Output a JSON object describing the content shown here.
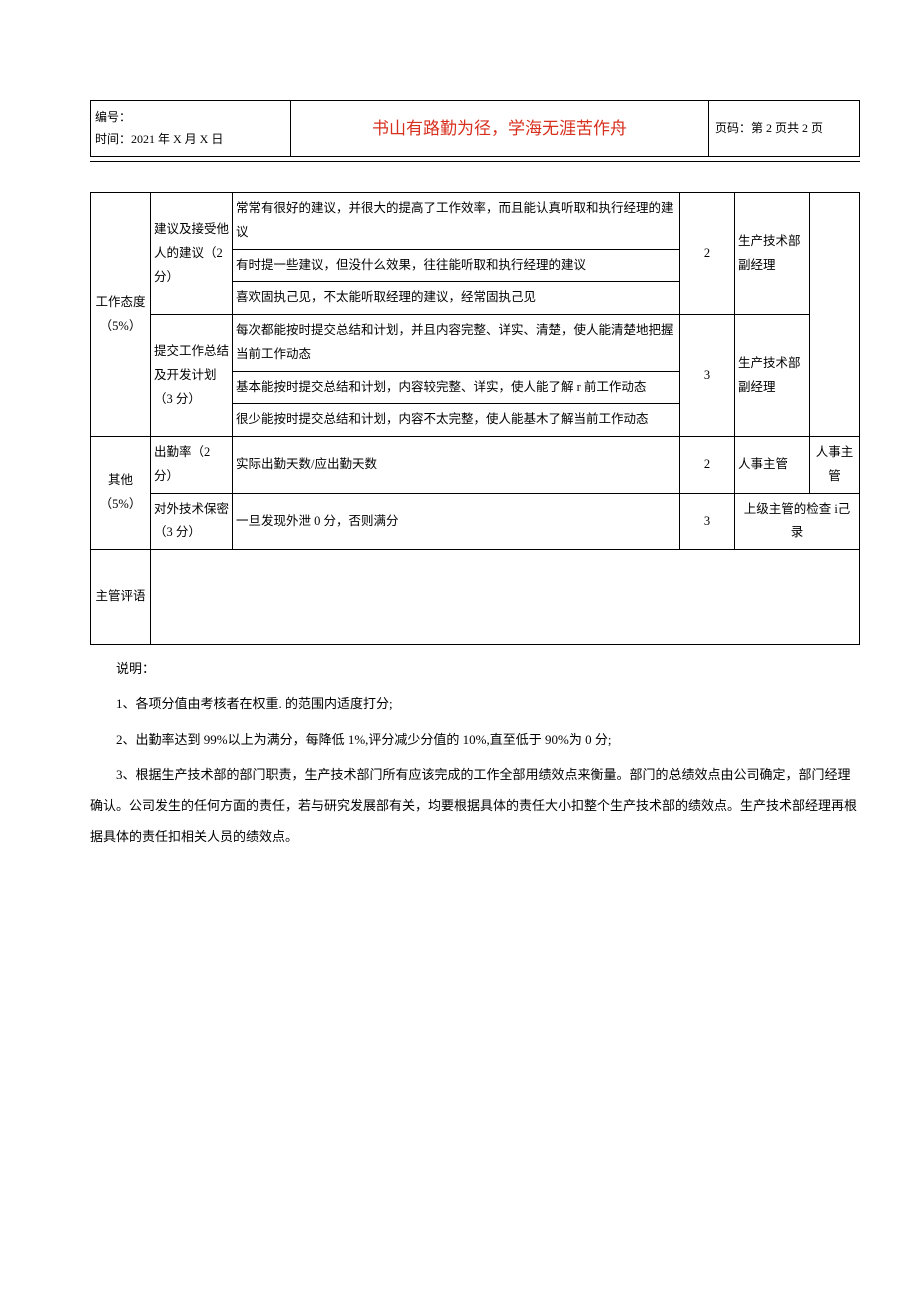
{
  "header": {
    "number_label": "编号：",
    "time_label": "时间：2021 年 X 月 X 日",
    "motto": "书山有路勤为径，学海无涯苦作舟",
    "page_label": "页码：第 2 页共 2 页"
  },
  "table": {
    "cat1": {
      "name": "工作态度（5%）",
      "sub1": {
        "name": "建议及接受他人的建议（2 分）",
        "desc1": "常常有很好的建议，并很大的提高了工作效率，而且能认真听取和执行经理的建议",
        "desc2": "有时提一些建议，但没什么效果，往往能听取和执行经理的建议",
        "desc3": "喜欢固执己见，不太能听取经理的建议，经常固执己见",
        "score": "2",
        "source": "生产技术部副经理"
      },
      "sub2": {
        "name": "提交工作总结及开发计划（3 分）",
        "desc1": "每次都能按时提交总结和计划，并且内容完整、详实、清楚，使人能清楚地把握当前工作动态",
        "desc2": "基本能按时提交总结和计划，内容较完整、详实，使人能了解 r 前工作动态",
        "desc3": "很少能按时提交总结和计划，内容不太完整，使人能基木了解当前工作动态",
        "score": "3",
        "source": "生产技术部副经理"
      }
    },
    "cat2": {
      "name": "其他（5%）",
      "sub1": {
        "name": "出勤率（2分）",
        "desc": "实际出勤天数/应出勤天数",
        "score": "2",
        "source": "人事主管",
        "extra": "人事主管"
      },
      "sub2": {
        "name": "对外技术保密（3 分）",
        "desc": "一旦发现外泄 0 分，否则满分",
        "score": "3",
        "source": "上级主管的检查 i己录"
      }
    },
    "comment_label": "主管评语"
  },
  "notes": {
    "title": "说明：",
    "n1": "1、各项分值由考核者在权重. 的范围内适度打分;",
    "n2": "2、出勤率达到 99%以上为满分，每降低 1%,评分减少分值的 10%,直至低于 90%为 0 分;",
    "n3": "3、根据生产技术部的部门职责，生产技术部门所有应该完成的工作全部用绩效点来衡量。部门的总绩效点由公司确定，部门经理确认。公司发生的任何方面的责任，若与研究发展部有关，均要根据具体的责任大小扣整个生产技术部的绩效点。生产技术部经理再根据具体的责任扣相关人员的绩效点。"
  },
  "colors": {
    "motto": "#d7301f",
    "border": "#000000",
    "text": "#000000",
    "background": "#ffffff"
  }
}
